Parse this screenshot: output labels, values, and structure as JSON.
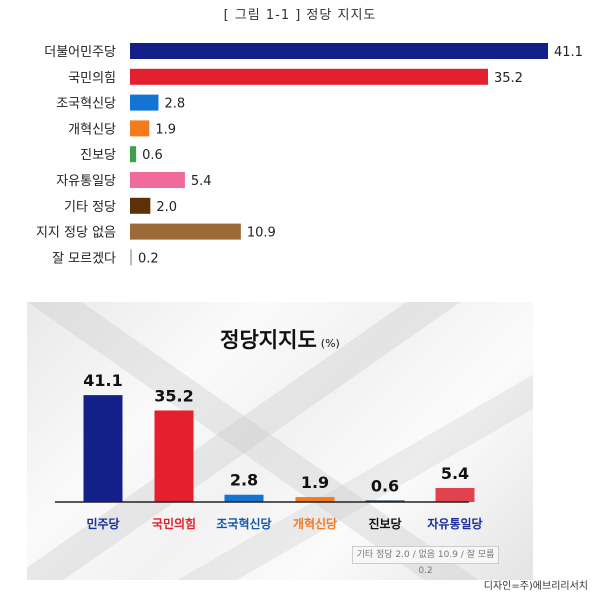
{
  "figure_title": "[ 그림 1-1 ] 정당 지지도",
  "chart_data": [
    {
      "type": "bar",
      "orientation": "horizontal",
      "title": "[ 그림 1-1 ] 정당 지지도",
      "categories": [
        "더불어민주당",
        "국민의힘",
        "조국혁신당",
        "개혁신당",
        "진보당",
        "자유통일당",
        "기타 정당",
        "지지 정당 없음",
        "잘 모르겠다"
      ],
      "values": [
        41.1,
        35.2,
        2.8,
        1.9,
        0.6,
        5.4,
        2.0,
        10.9,
        0.2
      ],
      "value_labels": [
        "41.1",
        "35.2",
        "2.8",
        "1.9",
        "0.6",
        "5.4",
        "2.0",
        "10.9",
        "0.2"
      ],
      "colors": [
        "#13208a",
        "#e5202e",
        "#1474d4",
        "#f47a1f",
        "#3aa34a",
        "#f06a9b",
        "#5e3008",
        "#9b6a36",
        "#bbbbbb"
      ],
      "grid": false
    },
    {
      "type": "bar",
      "orientation": "vertical",
      "title": "정당지지도",
      "unit": "(%)",
      "categories": [
        "민주당",
        "국민의힘",
        "조국혁신당",
        "개혁신당",
        "진보당",
        "자유통일당"
      ],
      "values": [
        41.1,
        35.2,
        2.8,
        1.9,
        0.6,
        5.4
      ],
      "value_labels": [
        "41.1",
        "35.2",
        "2.8",
        "1.9",
        "0.6",
        "5.4"
      ],
      "colors": [
        "#13208a",
        "#e5202e",
        "#1474d4",
        "#f47a1f",
        "#1f3b5a",
        "#e0434e"
      ],
      "logo_colors": [
        "#1a2f9c",
        "#e5202e",
        "#1458a8",
        "#f47a1f",
        "#111111",
        "#1a2f9c"
      ],
      "footnote": "기타 정당 2.0 / 없음 10.9 / 잘 모름 0.2",
      "grid": false
    }
  ],
  "credit": "디자인=주)에브리리서치"
}
